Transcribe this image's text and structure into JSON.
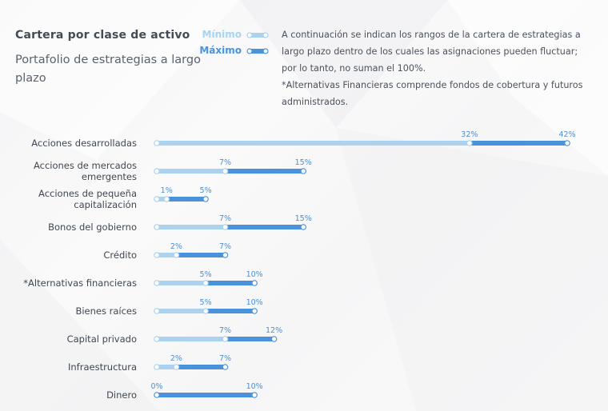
{
  "header": {
    "title": "Cartera por clase de activo",
    "subtitle": "Portafolio de estrategias a largo plazo"
  },
  "legend": {
    "min_label": "Mínimo",
    "max_label": "Máximo"
  },
  "note": {
    "line1": "A continuación se indican los rangos de la cartera de estrategias a largo plazo dentro de los cuales las asignaciones pueden fluctuar; por lo tanto, no suman el 100%.",
    "line2": "*Alternativas Financieras comprende fondos de cobertura y futuros administrados."
  },
  "colors": {
    "min": "#abd2ef",
    "max": "#4a93dc",
    "label": "#4a8fd6"
  },
  "chart_data": {
    "type": "bar",
    "orientation": "horizontal-range",
    "title": "Cartera por clase de activo",
    "categories": [
      [
        "Acciones desarrolladas"
      ],
      [
        "Acciones de mercados",
        "emergentes"
      ],
      [
        "Acciones de pequeña",
        "capitalización"
      ],
      [
        "Bonos del gobierno"
      ],
      [
        "Crédito"
      ],
      [
        "*Alternativas financieras"
      ],
      [
        "Bienes raíces"
      ],
      [
        "Capital privado"
      ],
      [
        "Infraestructura"
      ],
      [
        "Dinero"
      ]
    ],
    "series": [
      {
        "name": "Mínimo",
        "values": [
          32,
          7,
          1,
          7,
          2,
          5,
          5,
          7,
          2,
          0
        ]
      },
      {
        "name": "Máximo",
        "values": [
          42,
          15,
          5,
          15,
          7,
          10,
          10,
          12,
          7,
          10
        ]
      }
    ],
    "value_labels_min": [
      "32%",
      "7%",
      "1%",
      "7%",
      "2%",
      "5%",
      "5%",
      "7%",
      "2%",
      "0%"
    ],
    "value_labels_max": [
      "42%",
      "15%",
      "5%",
      "15%",
      "7%",
      "10%",
      "10%",
      "12%",
      "7%",
      "10%"
    ],
    "unit": "%",
    "xlim": [
      0,
      42
    ]
  }
}
